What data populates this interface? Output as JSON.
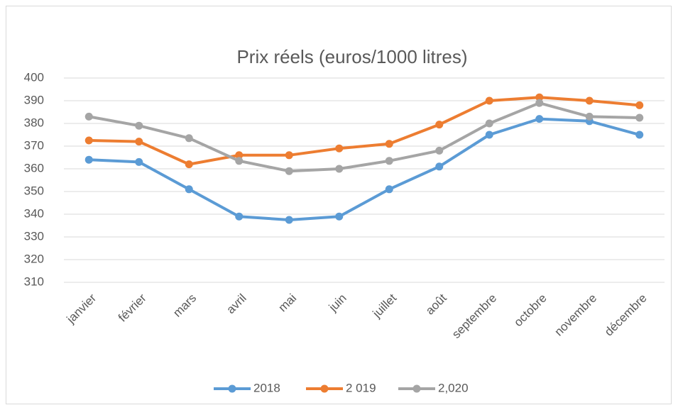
{
  "chart_data": {
    "type": "line",
    "title": "Prix réels (euros/1000 litres)",
    "categories": [
      "janvier",
      "février",
      "mars",
      "avril",
      "mai",
      "juin",
      "juillet",
      "août",
      "septembre",
      "octobre",
      "novembre",
      "décembre"
    ],
    "series": [
      {
        "name": "2018",
        "color": "#5b9bd5",
        "values": [
          364,
          363,
          351,
          339,
          337.5,
          339,
          351,
          361,
          375,
          382,
          381,
          375
        ]
      },
      {
        "name": "2 019",
        "color": "#ed7d31",
        "values": [
          372.5,
          372,
          362,
          366,
          366,
          369,
          371,
          379.5,
          390,
          391.5,
          390,
          388
        ]
      },
      {
        "name": "2,020",
        "color": "#a5a5a5",
        "values": [
          383,
          379,
          373.5,
          363.5,
          359,
          360,
          363.5,
          368,
          380,
          389,
          383,
          382.5
        ]
      }
    ],
    "ylim": [
      310,
      400
    ],
    "yticks": [
      310,
      320,
      330,
      340,
      350,
      360,
      370,
      380,
      390,
      400
    ],
    "grid": true,
    "legend": "bottom"
  }
}
